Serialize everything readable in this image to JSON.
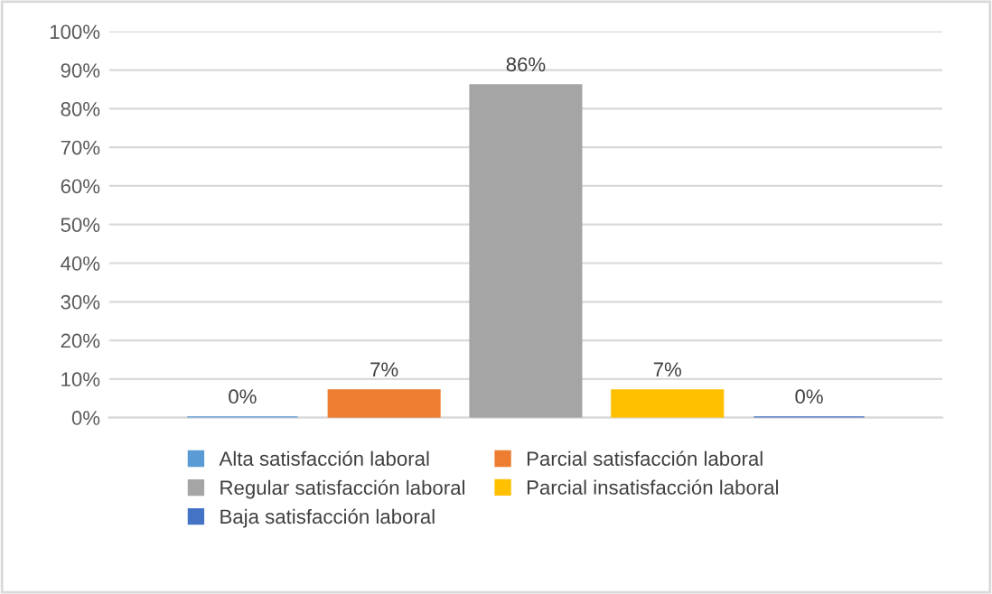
{
  "chart_data": {
    "type": "bar",
    "categories": [
      null
    ],
    "series": [
      {
        "name": "Alta satisfacción laboral",
        "color": "#5b9bd5",
        "values": [
          0
        ],
        "value_labels": [
          "0%"
        ]
      },
      {
        "name": "Parcial satisfacción laboral",
        "color": "#ed7d31",
        "values": [
          7
        ],
        "value_labels": [
          "7%"
        ]
      },
      {
        "name": "Regular satisfacción laboral",
        "color": "#a5a5a5",
        "values": [
          86
        ],
        "value_labels": [
          "86%"
        ]
      },
      {
        "name": "Parcial insatisfacción laboral",
        "color": "#ffc000",
        "values": [
          7
        ],
        "value_labels": [
          "7%"
        ]
      },
      {
        "name": "Baja satisfacción laboral",
        "color": "#4472c4",
        "values": [
          0
        ],
        "value_labels": [
          "0%"
        ]
      }
    ],
    "ylim": [
      0,
      100
    ],
    "yticks": [
      {
        "value": 0,
        "label": "0%"
      },
      {
        "value": 10,
        "label": "10%"
      },
      {
        "value": 20,
        "label": "20%"
      },
      {
        "value": 30,
        "label": "30%"
      },
      {
        "value": 40,
        "label": "40%"
      },
      {
        "value": 50,
        "label": "50%"
      },
      {
        "value": 60,
        "label": "60%"
      },
      {
        "value": 70,
        "label": "70%"
      },
      {
        "value": 80,
        "label": "80%"
      },
      {
        "value": 90,
        "label": "90%"
      },
      {
        "value": 100,
        "label": "100%"
      }
    ],
    "grid": "y",
    "legend": "bottom"
  }
}
